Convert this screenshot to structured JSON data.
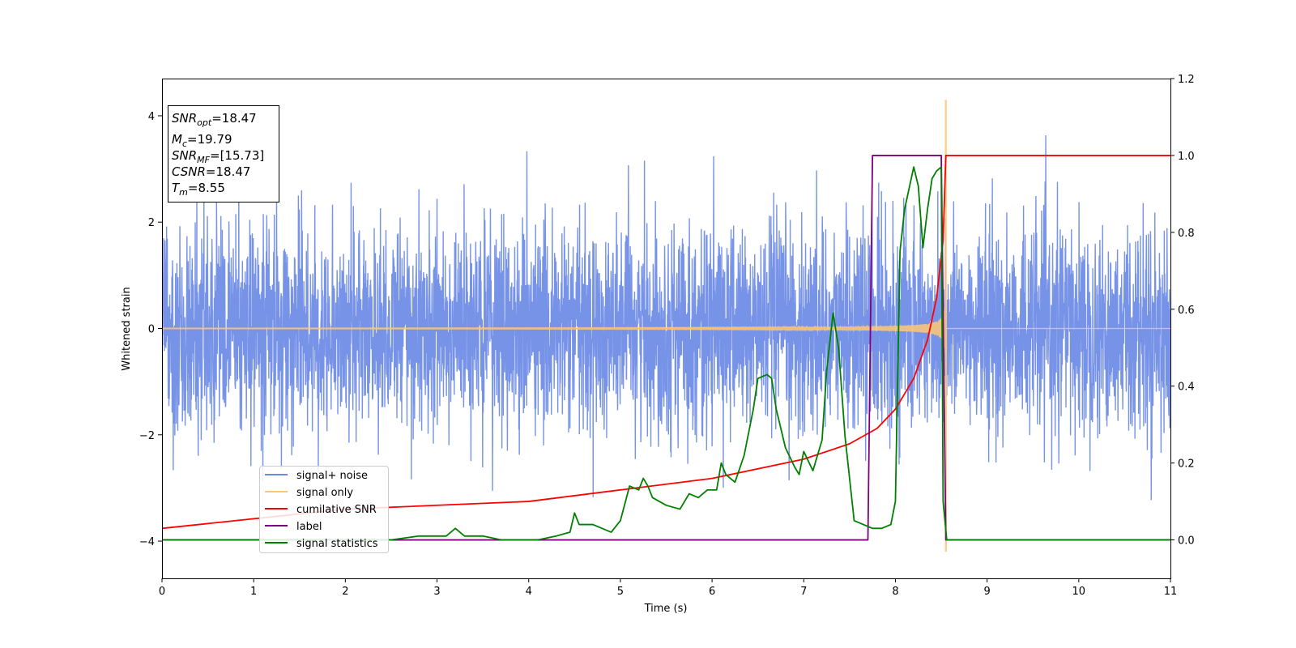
{
  "chart_data": {
    "type": "line",
    "xlabel": "Time (s)",
    "ylabel": "Whitened strain",
    "xlim": [
      0,
      11
    ],
    "ylim_left": [
      -4.7,
      4.7
    ],
    "ylim_right": [
      -0.1,
      1.2
    ],
    "x_ticks": [
      "0",
      "1",
      "2",
      "3",
      "4",
      "5",
      "6",
      "7",
      "8",
      "9",
      "10",
      "11"
    ],
    "y_ticks_left": [
      "4",
      "2",
      "0",
      "−2",
      "−4"
    ],
    "y_ticks_right": [
      "1.2",
      "1.0",
      "0.8",
      "0.6",
      "0.4",
      "0.2",
      "0.0"
    ],
    "info_box": [
      {
        "sym": "SNR",
        "sub": "opt",
        "rest": "=18.47"
      },
      {
        "sym": "M",
        "sub": "c",
        "rest": "=19.79"
      },
      {
        "sym": "SNR",
        "sub": "MF",
        "rest": "=[15.73]"
      },
      {
        "sym": "CSNR",
        "sub": "",
        "rest": "=18.47"
      },
      {
        "sym": "T",
        "sub": "m",
        "rest": "=8.55"
      }
    ],
    "legend": [
      "signal+ noise",
      "signal only",
      "cumilative SNR",
      "label",
      "signal statistics"
    ],
    "legend_location": "lower-left",
    "series": [
      {
        "name": "signal+ noise",
        "axis": "left",
        "color": "#6b8ae6",
        "description_of_values": "approximately Gaussian whitened noise, amplitude about ±2.5 with spikes to ±4, chirp added near 7.5–8.55 s"
      },
      {
        "name": "signal only",
        "axis": "left",
        "color": "#ffc774",
        "chirp_end_time": 8.55,
        "peak_amplitude": [
          4.3,
          -4.2
        ]
      },
      {
        "name": "cumilative SNR",
        "axis": "right",
        "color": "#ff0000",
        "x": [
          0,
          2,
          4,
          5,
          6,
          7,
          7.5,
          7.8,
          8.0,
          8.2,
          8.35,
          8.45,
          8.52,
          8.55,
          11
        ],
        "y": [
          0.03,
          0.08,
          0.1,
          0.13,
          0.16,
          0.21,
          0.25,
          0.29,
          0.34,
          0.42,
          0.52,
          0.63,
          0.78,
          1.0,
          1.0
        ]
      },
      {
        "name": "label",
        "axis": "right",
        "color": "#800080",
        "x": [
          0,
          7.7,
          7.75,
          8.5,
          8.55,
          11
        ],
        "y": [
          0.0,
          0.0,
          1.0,
          1.0,
          0.0,
          0.0
        ]
      },
      {
        "name": "signal statistics",
        "axis": "right",
        "color": "#008000",
        "x": [
          0,
          1,
          2,
          2.5,
          2.8,
          3.0,
          3.1,
          3.2,
          3.3,
          3.4,
          3.5,
          3.7,
          3.9,
          4.1,
          4.3,
          4.45,
          4.5,
          4.55,
          4.6,
          4.7,
          4.8,
          4.9,
          5.0,
          5.1,
          5.2,
          5.25,
          5.3,
          5.35,
          5.5,
          5.65,
          5.75,
          5.85,
          5.95,
          6.05,
          6.1,
          6.15,
          6.25,
          6.35,
          6.45,
          6.5,
          6.6,
          6.65,
          6.7,
          6.8,
          6.9,
          6.95,
          7.0,
          7.1,
          7.2,
          7.25,
          7.32,
          7.38,
          7.45,
          7.55,
          7.65,
          7.75,
          7.85,
          7.95,
          8.0,
          8.05,
          8.1,
          8.2,
          8.25,
          8.3,
          8.35,
          8.4,
          8.45,
          8.5,
          8.52,
          8.56,
          8.62,
          9,
          11
        ],
        "y": [
          0.0,
          0.0,
          0.0,
          0.0,
          0.01,
          0.01,
          0.01,
          0.03,
          0.01,
          0.01,
          0.01,
          0.0,
          0.0,
          0.0,
          0.01,
          0.02,
          0.07,
          0.04,
          0.04,
          0.04,
          0.03,
          0.02,
          0.05,
          0.14,
          0.13,
          0.16,
          0.14,
          0.11,
          0.09,
          0.08,
          0.12,
          0.11,
          0.13,
          0.13,
          0.2,
          0.17,
          0.15,
          0.22,
          0.34,
          0.42,
          0.43,
          0.42,
          0.34,
          0.24,
          0.19,
          0.17,
          0.23,
          0.18,
          0.26,
          0.44,
          0.59,
          0.5,
          0.27,
          0.05,
          0.04,
          0.03,
          0.03,
          0.04,
          0.1,
          0.75,
          0.86,
          0.97,
          0.92,
          0.76,
          0.86,
          0.94,
          0.96,
          0.97,
          0.1,
          0.0,
          0.0,
          0.0,
          0.0
        ]
      }
    ]
  }
}
